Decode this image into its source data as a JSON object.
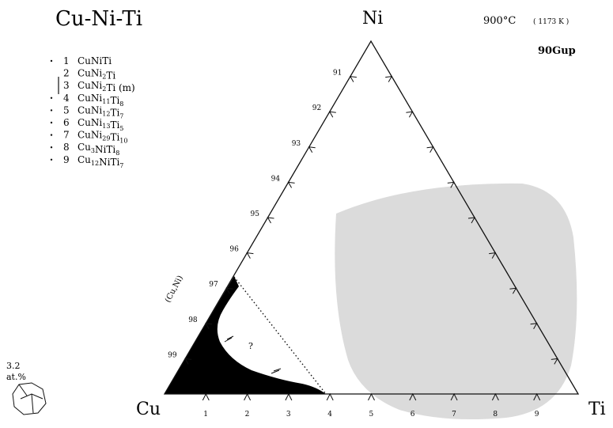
{
  "title": "Cu-Ni-Ti",
  "condition": {
    "celsius": "900°C",
    "kelvin": "( 1173 K )"
  },
  "reference": "90Gup",
  "corners": {
    "top": "Ni",
    "left": "Cu",
    "right": "Ti"
  },
  "legend": [
    {
      "num": "1",
      "parts": [
        [
          "CuNiTi",
          ""
        ]
      ]
    },
    {
      "num": "2",
      "parts": [
        [
          "CuNi",
          ""
        ],
        [
          "2",
          "sub"
        ],
        [
          "Ti",
          ""
        ]
      ]
    },
    {
      "num": "3",
      "parts": [
        [
          "CuNi",
          ""
        ],
        [
          "2",
          "sub"
        ],
        [
          "Ti (m)",
          ""
        ]
      ]
    },
    {
      "num": "4",
      "parts": [
        [
          "CuNi",
          ""
        ],
        [
          "11",
          "sub"
        ],
        [
          "Ti",
          ""
        ],
        [
          "8",
          "sub"
        ]
      ]
    },
    {
      "num": "5",
      "parts": [
        [
          "CuNi",
          ""
        ],
        [
          "12",
          "sub"
        ],
        [
          "Ti",
          ""
        ],
        [
          "7",
          "sub"
        ]
      ]
    },
    {
      "num": "6",
      "parts": [
        [
          "CuNi",
          ""
        ],
        [
          "13",
          "sub"
        ],
        [
          "Ti",
          ""
        ],
        [
          "5",
          "sub"
        ]
      ]
    },
    {
      "num": "7",
      "parts": [
        [
          "CuNi",
          ""
        ],
        [
          "29",
          "sub"
        ],
        [
          "Ti",
          ""
        ],
        [
          "10",
          "sub"
        ]
      ]
    },
    {
      "num": "8",
      "parts": [
        [
          "Cu",
          ""
        ],
        [
          "3",
          "sub"
        ],
        [
          "NiTi",
          ""
        ],
        [
          "8",
          "sub"
        ]
      ]
    },
    {
      "num": "9",
      "parts": [
        [
          "Cu",
          ""
        ],
        [
          "12",
          "sub"
        ],
        [
          "NiTi",
          ""
        ],
        [
          "7",
          "sub"
        ]
      ]
    }
  ],
  "left_axis_labels": [
    "91",
    "92",
    "93",
    "94",
    "95",
    "96",
    "97",
    "98",
    "99"
  ],
  "bottom_axis_labels": [
    "1",
    "2",
    "3",
    "4",
    "5",
    "6",
    "7",
    "8",
    "9"
  ],
  "phase_label": "(Cu,Ni)",
  "unknown_region_label": "?",
  "scale_note": {
    "value": "3.2",
    "unit": "at.%"
  }
}
